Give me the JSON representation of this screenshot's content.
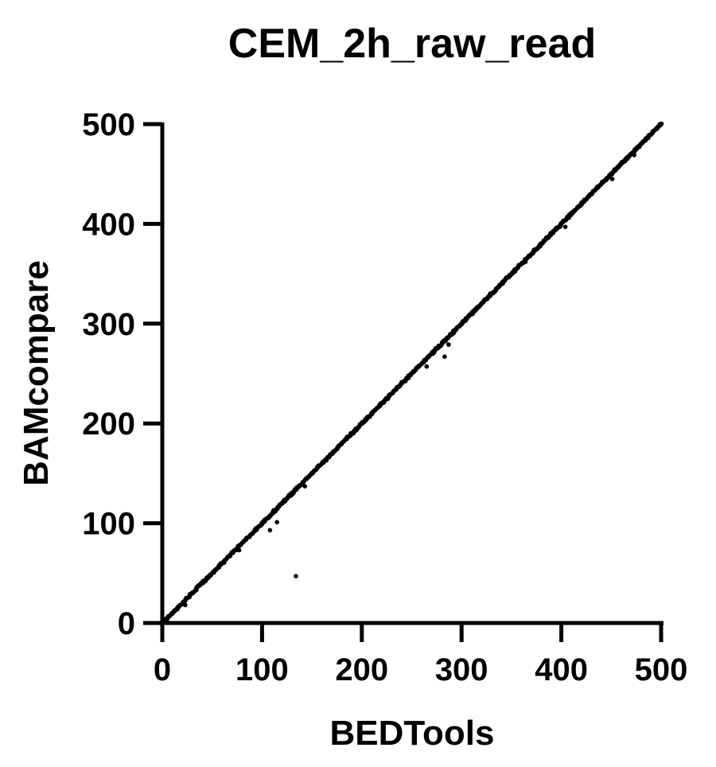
{
  "chart_data": {
    "type": "scatter",
    "title": "CEM_2h_raw_read",
    "xlabel": "BEDTools",
    "ylabel": "BAMcompare",
    "xlim": [
      0,
      500
    ],
    "ylim": [
      0,
      500
    ],
    "xticks": [
      "0",
      "100",
      "200",
      "300",
      "400",
      "500"
    ],
    "yticks": [
      "0",
      "100",
      "200",
      "300",
      "400",
      "500"
    ],
    "grid": false,
    "legend": "none",
    "marker_color": "#000000",
    "series": [
      {
        "diagonal_range": [
          0,
          500
        ],
        "outliers": [
          {
            "x": 134,
            "y": 47
          },
          {
            "x": 115,
            "y": 101
          },
          {
            "x": 108,
            "y": 93
          },
          {
            "x": 143,
            "y": 137
          },
          {
            "x": 265,
            "y": 257
          },
          {
            "x": 283,
            "y": 267
          },
          {
            "x": 287,
            "y": 279
          },
          {
            "x": 364,
            "y": 362
          },
          {
            "x": 404,
            "y": 397
          },
          {
            "x": 451,
            "y": 445
          },
          {
            "x": 473,
            "y": 469
          },
          {
            "x": 488,
            "y": 489
          },
          {
            "x": 77,
            "y": 73
          },
          {
            "x": 23,
            "y": 18
          }
        ]
      }
    ]
  }
}
